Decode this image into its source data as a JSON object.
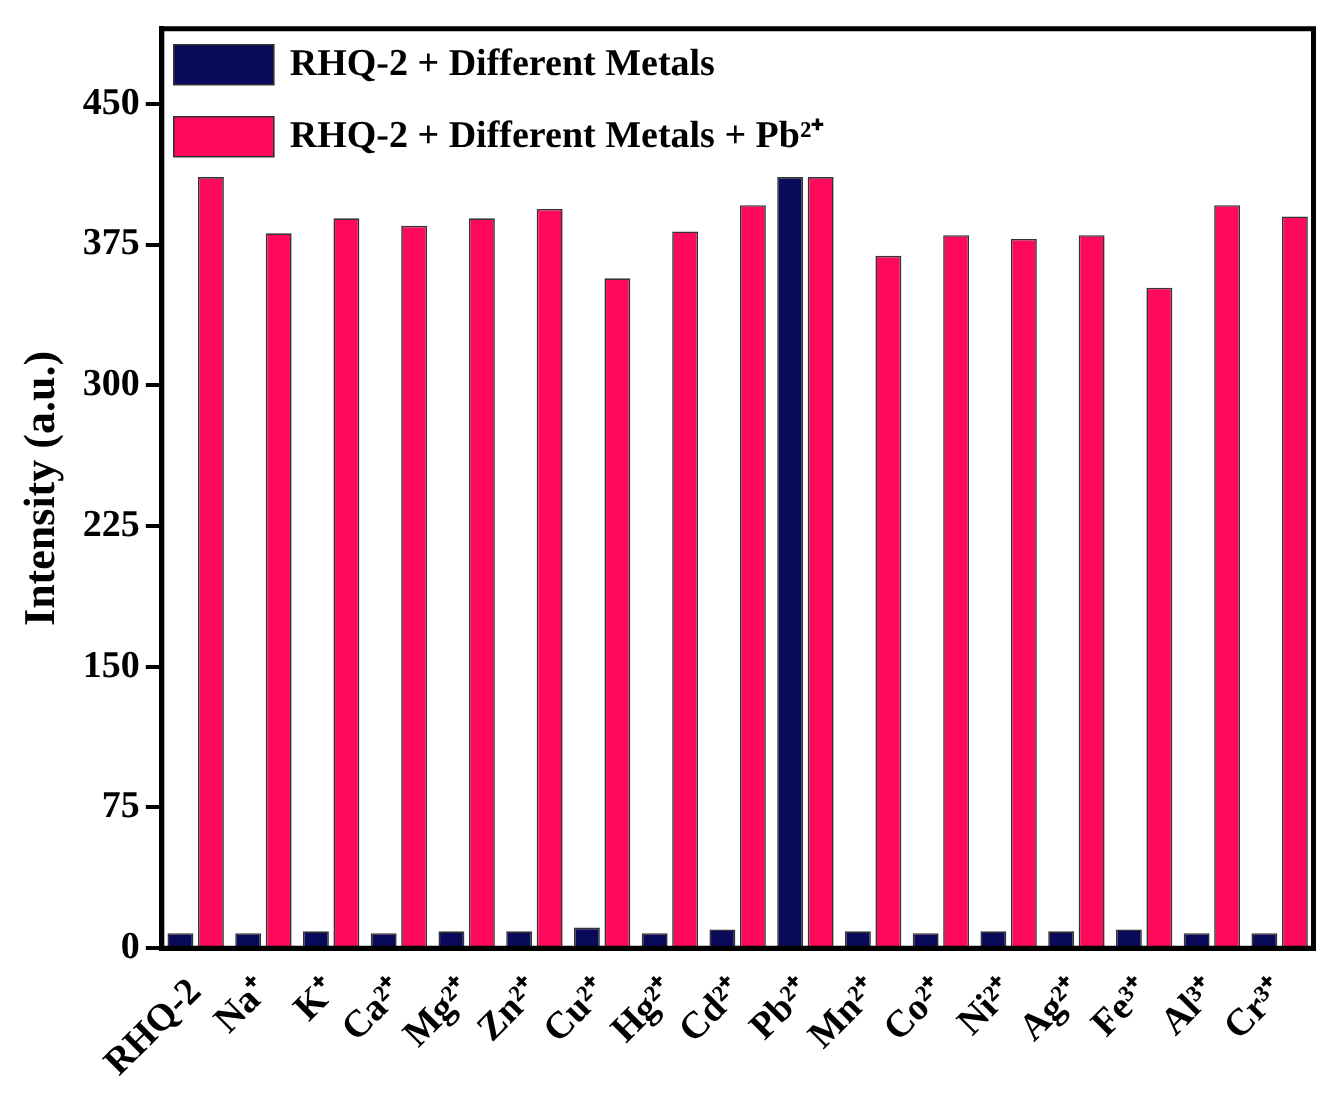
{
  "chart_data": {
    "type": "bar",
    "ylabel": "Intensity (a.u.)",
    "categories": [
      "RHQ-2",
      "Na⁺",
      "K⁺",
      "Ca²⁺",
      "Mg²⁺",
      "Zn²⁺",
      "Cu²⁺",
      "Hg²⁺",
      "Cd²⁺",
      "Pb²⁺",
      "Mn²⁺",
      "Co²⁺",
      "Ni²⁺",
      "Ag²⁺",
      "Fe³⁺",
      "Al³⁺",
      "Cr³⁺"
    ],
    "series": [
      {
        "name": "RHQ-2 + Different Metals",
        "color": "#0a0a5a",
        "values": [
          8,
          8,
          9,
          8,
          9,
          9,
          11,
          8,
          10,
          411,
          9,
          8,
          9,
          9,
          10,
          8,
          8
        ]
      },
      {
        "name": "RHQ-2 + Different Metals + Pb²⁺",
        "color": "#ff0a5a",
        "values": [
          411,
          381,
          389,
          385,
          389,
          394,
          357,
          382,
          396,
          411,
          369,
          380,
          378,
          380,
          352,
          396,
          390
        ]
      }
    ],
    "ylim": [
      0,
      490
    ],
    "yticks": [
      0,
      75,
      150,
      225,
      300,
      375,
      450
    ],
    "grid": false,
    "legend": "top left"
  }
}
